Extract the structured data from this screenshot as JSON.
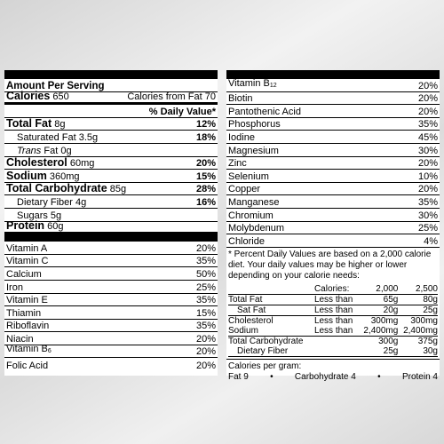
{
  "left": {
    "header": "Amount Per Serving",
    "calories_label": "Calories",
    "calories_value": "650",
    "calories_fat": "Calories from Fat 70",
    "dv_header": "% Daily Value*",
    "nutrients": [
      {
        "label": "Total Fat",
        "amount": "8g",
        "dv": "12%",
        "bold": true
      },
      {
        "label": "Saturated Fat",
        "amount": "3.5g",
        "dv": "18%",
        "indent": true
      },
      {
        "label": "Trans",
        "amount": "Fat 0g",
        "dv": "",
        "indent": true,
        "italic": true
      },
      {
        "label": "Cholesterol",
        "amount": "60mg",
        "dv": "20%",
        "bold": true
      },
      {
        "label": "Sodium",
        "amount": "360mg",
        "dv": "15%",
        "bold": true
      },
      {
        "label": "Total Carbohydrate",
        "amount": "85g",
        "dv": "28%",
        "bold": true
      },
      {
        "label": "Dietary Fiber",
        "amount": "4g",
        "dv": "16%",
        "indent": true
      },
      {
        "label": "Sugars",
        "amount": "5g",
        "dv": "",
        "indent": true
      },
      {
        "label": "Protein",
        "amount": "60g",
        "dv": "",
        "bold": true
      }
    ],
    "vitamins": [
      {
        "label": "Vitamin A",
        "dv": "20%"
      },
      {
        "label": "Vitamin C",
        "dv": "35%"
      },
      {
        "label": "Calcium",
        "dv": "50%"
      },
      {
        "label": "Iron",
        "dv": "25%"
      },
      {
        "label": "Vitamin E",
        "dv": "35%"
      },
      {
        "label": "Thiamin",
        "dv": "15%"
      },
      {
        "label": "Riboflavin",
        "dv": "35%"
      },
      {
        "label": "Niacin",
        "dv": "20%"
      },
      {
        "label": "Vitamin B",
        "sub": "6",
        "dv": "20%"
      },
      {
        "label": "Folic Acid",
        "dv": "20%"
      }
    ]
  },
  "right": {
    "minerals": [
      {
        "label": "Vitamin B",
        "sub": "12",
        "dv": "20%"
      },
      {
        "label": "Biotin",
        "dv": "20%"
      },
      {
        "label": "Pantothenic Acid",
        "dv": "20%"
      },
      {
        "label": "Phosphorus",
        "dv": "35%"
      },
      {
        "label": "Iodine",
        "dv": "45%"
      },
      {
        "label": "Magnesium",
        "dv": "30%"
      },
      {
        "label": "Zinc",
        "dv": "20%"
      },
      {
        "label": "Selenium",
        "dv": "10%"
      },
      {
        "label": "Copper",
        "dv": "20%"
      },
      {
        "label": "Manganese",
        "dv": "35%"
      },
      {
        "label": "Chromium",
        "dv": "30%"
      },
      {
        "label": "Molybdenum",
        "dv": "25%"
      },
      {
        "label": "Chloride",
        "dv": "4%"
      }
    ],
    "footnote": "* Percent Daily Values are based on a 2,000 calorie diet. Your daily values may be higher or lower depending on your calorie needs:",
    "table_header": {
      "label": "",
      "cmp": "Calories:",
      "a": "2,000",
      "b": "2,500"
    },
    "table": [
      {
        "label": "Total Fat",
        "cmp": "Less than",
        "a": "65g",
        "b": "80g",
        "line": true
      },
      {
        "label": "Sat Fat",
        "cmp": "Less than",
        "a": "20g",
        "b": "25g",
        "indent": true,
        "line": true
      },
      {
        "label": "Cholesterol",
        "cmp": "Less than",
        "a": "300mg",
        "b": "300mg"
      },
      {
        "label": "Sodium",
        "cmp": "Less than",
        "a": "2,400mg",
        "b": "2,400mg",
        "line": true
      },
      {
        "label": "Total Carbohydrate",
        "cmp": "",
        "a": "300g",
        "b": "375g"
      },
      {
        "label": "Dietary Fiber",
        "cmp": "",
        "a": "25g",
        "b": "30g",
        "indent": true,
        "line": true
      }
    ],
    "cal_per_gram": "Calories per gram:",
    "cal_items": [
      "Fat 9",
      "•",
      "Carbohydrate 4",
      "•",
      "Protein 4"
    ]
  }
}
